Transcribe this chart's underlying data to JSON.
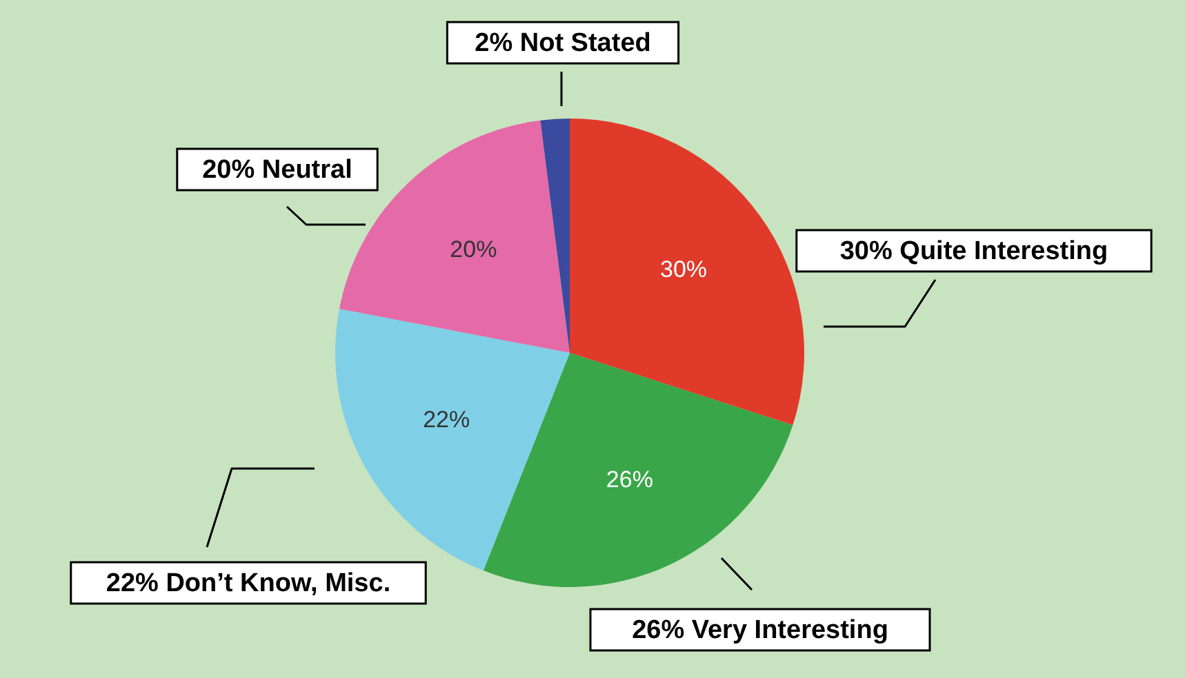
{
  "chart_data": {
    "type": "pie",
    "categories": [
      "30% Quite Interesting",
      "26% Very Interesting",
      "22% Don’t Know, Misc.",
      "20% Neutral",
      "2% Not Stated"
    ],
    "values": [
      30,
      26,
      22,
      20,
      2
    ],
    "colors": [
      "#e03a2a",
      "#3aa64a",
      "#7fd0e6",
      "#e46aa8",
      "#3a4a9e"
    ],
    "value_labels": [
      "30%",
      "26%",
      "22%",
      "20%",
      null
    ]
  }
}
